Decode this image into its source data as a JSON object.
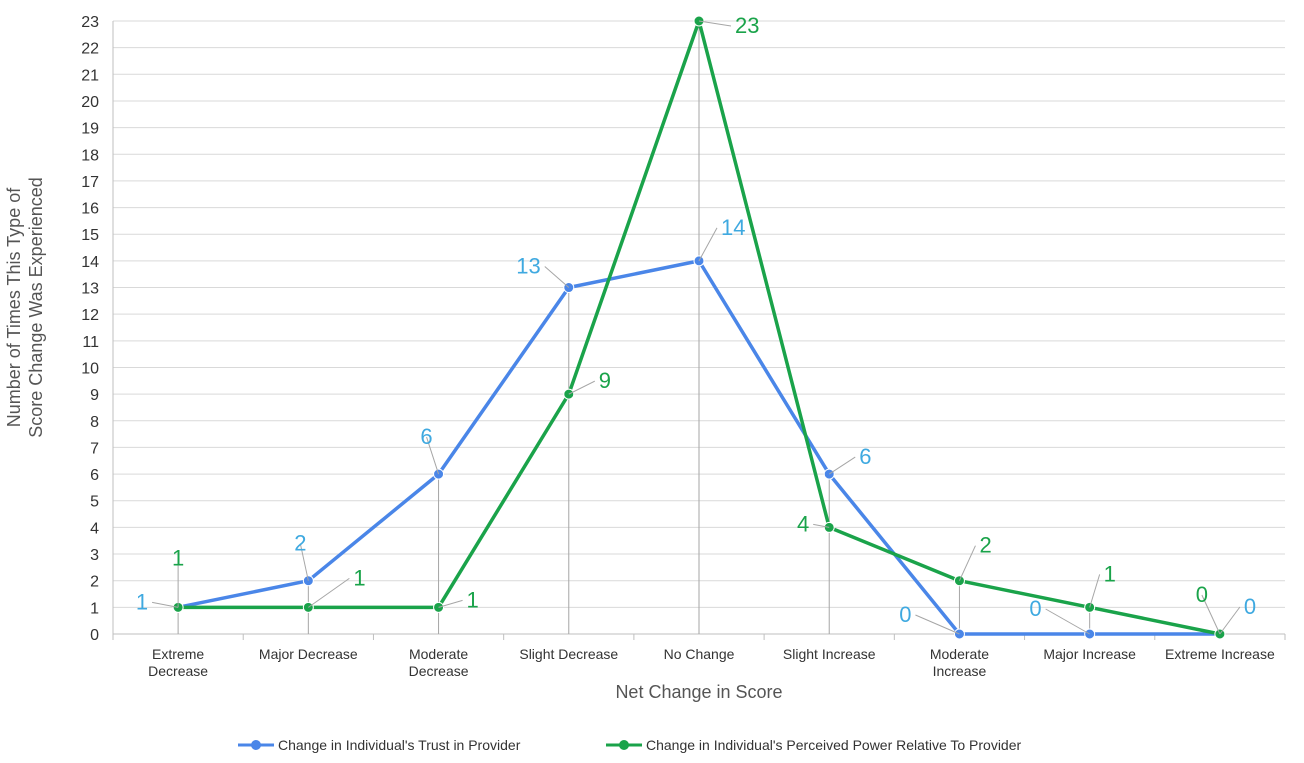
{
  "chart_data": {
    "type": "line",
    "title": "",
    "xlabel": "Net Change in Score",
    "ylabel_lines": [
      "Number of Times This Type of",
      "Score Change Was Experienced"
    ],
    "ylim": [
      0,
      23
    ],
    "yticks": [
      0,
      1,
      2,
      3,
      4,
      5,
      6,
      7,
      8,
      9,
      10,
      11,
      12,
      13,
      14,
      15,
      16,
      17,
      18,
      19,
      20,
      21,
      22,
      23
    ],
    "grid": true,
    "legend_position": "bottom",
    "categories": [
      [
        "Extreme",
        "Decrease"
      ],
      [
        "Major Decrease"
      ],
      [
        "Moderate",
        "Decrease"
      ],
      [
        "Slight Decrease"
      ],
      [
        "No Change"
      ],
      [
        "Slight Increase"
      ],
      [
        "Moderate",
        "Increase"
      ],
      [
        "Major Increase"
      ],
      [
        "Extreme Increase"
      ]
    ],
    "series": [
      {
        "name": "Change in Individual's Trust in Provider",
        "color": "#4a86e8",
        "label_color": "#3fa9e0",
        "values": [
          1,
          2,
          6,
          13,
          14,
          6,
          0,
          0,
          0
        ]
      },
      {
        "name": "Change in Individual's Perceived Power Relative To Provider",
        "color": "#1aa34a",
        "label_color": "#1aa34a",
        "values": [
          1,
          1,
          1,
          9,
          23,
          4,
          2,
          1,
          0
        ]
      }
    ]
  }
}
